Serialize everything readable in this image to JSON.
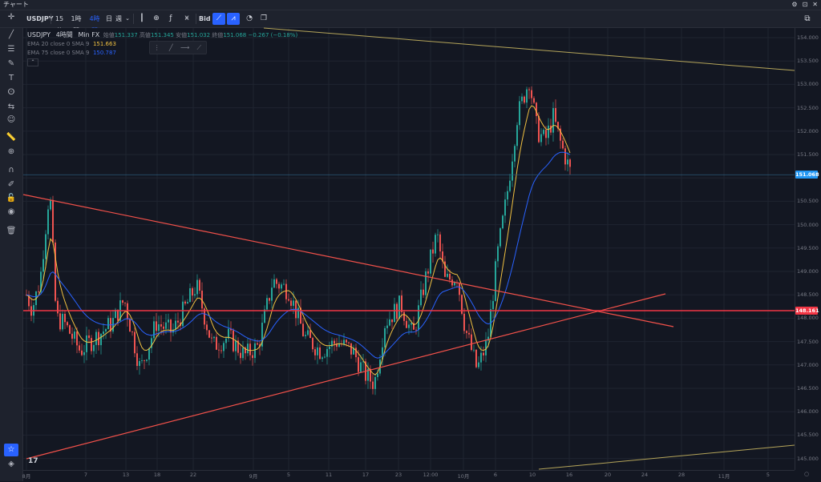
{
  "window": {
    "title": "チャート",
    "controls": [
      "⚙",
      "⊡",
      "✕"
    ]
  },
  "toolbar": {
    "symbol": "USDJPY",
    "intervals": [
      {
        "label": "15分",
        "active": false
      },
      {
        "label": "1時間",
        "active": false
      },
      {
        "label": "4時間",
        "active": true
      },
      {
        "label": "日",
        "active": false
      },
      {
        "label": "週",
        "active": false
      }
    ],
    "bid_label": "Bid"
  },
  "legend": {
    "symbol": "USDJPY",
    "interval": "4時間",
    "source": "Min FX",
    "open_label": "始値",
    "open": "151.337",
    "high_label": "高値",
    "high": "151.345",
    "low_label": "安値",
    "low": "151.032",
    "close_label": "終値",
    "close": "151.068",
    "change": "−0.267 (−0.18%)",
    "ema20_label": "EMA 20 close 0 SMA 9",
    "ema20_value": "151.663",
    "ema75_label": "EMA 75 close 0 SMA 9",
    "ema75_value": "150.787"
  },
  "price_axis": {
    "ticks": [
      "154.000",
      "153.500",
      "153.000",
      "152.500",
      "152.000",
      "151.500",
      "150.500",
      "150.000",
      "149.500",
      "149.000",
      "148.500",
      "148.000",
      "147.500",
      "147.000",
      "146.500",
      "146.000",
      "145.500",
      "145.000"
    ],
    "current_price": "151.068",
    "hline_price": "148.161"
  },
  "time_axis": {
    "ticks": [
      "8月",
      "7",
      "13",
      "18",
      "22",
      "9月",
      "5",
      "11",
      "17",
      "23",
      "12:00",
      "10月",
      "6",
      "10",
      "16",
      "20",
      "24",
      "28",
      "11月",
      "5"
    ]
  },
  "colors": {
    "bull": "#26a69a",
    "bear": "#ef5350",
    "ema20": "#f0c040",
    "ema75": "#2962ff",
    "hline": "#f23645",
    "trend": "#f2514a",
    "channel": "#b5a55a",
    "price_badge": "#2196f3"
  },
  "tv_logo": "17"
}
